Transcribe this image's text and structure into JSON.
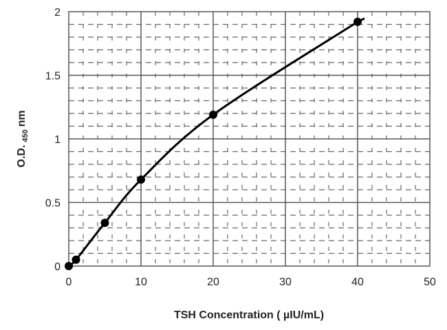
{
  "chart_data": {
    "type": "line",
    "title": "",
    "xlabel": "TSH Concentration ( µIU/mL)",
    "ylabel_main": "O.D.",
    "ylabel_sub": "450",
    "ylabel_unit": "nm",
    "xlim": [
      0,
      50
    ],
    "ylim": [
      0,
      2
    ],
    "xticks": [
      "0",
      "10",
      "20",
      "30",
      "40",
      "50"
    ],
    "yticks": [
      "0",
      "0.5",
      "1",
      "1.5",
      "2"
    ],
    "grid": "major solid, minor dashed",
    "series": [
      {
        "x": [
          0,
          1,
          5,
          10,
          20,
          40
        ],
        "y": [
          0,
          0.05,
          0.34,
          0.68,
          1.19,
          1.92
        ]
      }
    ],
    "colors": {
      "line": "#000000",
      "grid_major": "#555555",
      "grid_minor": "#666666"
    }
  }
}
